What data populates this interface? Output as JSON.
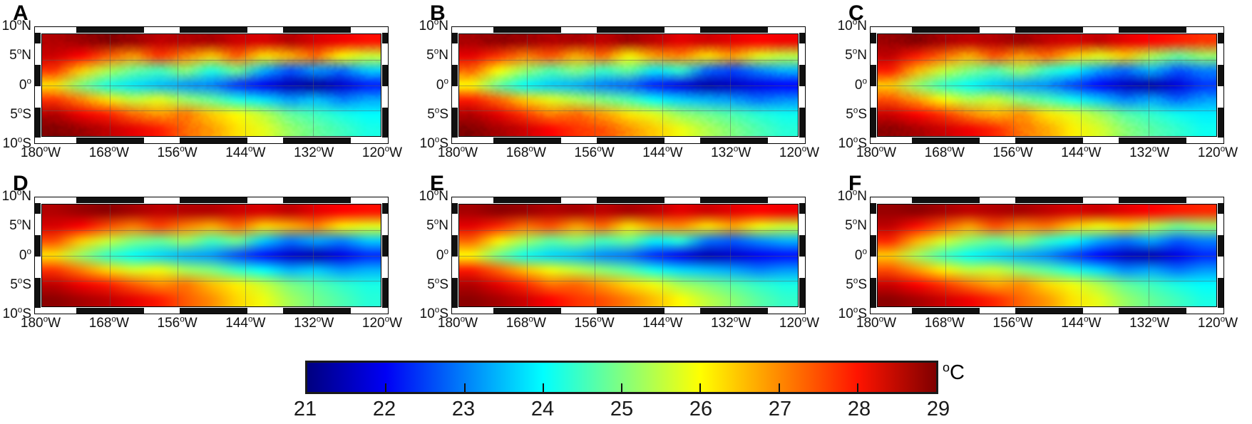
{
  "figure": {
    "axes": {
      "x_tick_labels": [
        "180°W",
        "168°W",
        "156°W",
        "144°W",
        "132°W",
        "120°W"
      ],
      "y_tick_labels": [
        "10°N",
        "5°N",
        "0°",
        "5°S",
        "10°S"
      ]
    },
    "panel_labels": [
      "A",
      "B",
      "C",
      "D",
      "E",
      "F"
    ],
    "colorbar": {
      "tick_labels": [
        "21",
        "22",
        "23",
        "24",
        "25",
        "26",
        "27",
        "28",
        "29"
      ],
      "unit": "°C"
    }
  },
  "chart_data": {
    "type": "heatmap",
    "description": "Six-panel sea surface temperature maps of the equatorial Pacific (10°N-10°S, 180°W-120°W). Top row (A,B,C): high-resolution grainy SST fields; bottom row (D,E,F): smoother SST fields. Warm water (27-29°C) north of ~5°N and southwest; equatorial cold tongue (21-23°C) intensifying eastward; tropical-instability-wave cusps along the fronts.",
    "colormap": "jet",
    "value_range_degC": [
      21,
      29
    ],
    "colorbar": {
      "label": "°C",
      "tick_values": [
        21,
        22,
        23,
        24,
        25,
        26,
        27,
        28,
        29
      ],
      "orientation": "horizontal"
    },
    "lat_axis_deg": [
      10,
      6.67,
      3.33,
      0,
      -3.33,
      -6.67,
      -10
    ],
    "lon_axis_deg": [
      -180,
      -175,
      -170,
      -165,
      -160,
      -155,
      -150,
      -145,
      -140,
      -135,
      -130,
      -125,
      -120
    ],
    "lon_tick_values": [
      -180,
      -168,
      -156,
      -144,
      -132,
      -120
    ],
    "lat_tick_values": [
      10,
      5,
      0,
      -5,
      -10
    ],
    "grid_on": true,
    "panels": [
      {
        "label": "A",
        "resolution": "high",
        "sst_grid_degC": [
          [
            28.6,
            28.8,
            29.0,
            28.8,
            28.5,
            28.6,
            28.7,
            28.4,
            28.3,
            28.6,
            28.3,
            28.1,
            27.9
          ],
          [
            28.4,
            28.0,
            27.3,
            26.8,
            27.6,
            27.0,
            26.4,
            27.3,
            26.2,
            26.6,
            27.2,
            26.0,
            25.6
          ],
          [
            27.6,
            26.4,
            25.4,
            24.8,
            24.5,
            25.1,
            24.2,
            24.9,
            23.4,
            22.6,
            23.2,
            22.8,
            23.6
          ],
          [
            26.2,
            25.0,
            24.2,
            23.8,
            23.5,
            23.2,
            23.0,
            22.4,
            21.9,
            21.4,
            21.2,
            21.6,
            22.2
          ],
          [
            27.6,
            27.0,
            26.2,
            25.5,
            25.8,
            25.2,
            24.8,
            24.2,
            23.8,
            23.2,
            23.5,
            23.0,
            23.3
          ],
          [
            28.6,
            28.1,
            27.8,
            27.2,
            26.8,
            27.1,
            26.4,
            26.0,
            25.5,
            24.8,
            24.5,
            24.2,
            24.0
          ],
          [
            29.0,
            28.8,
            28.5,
            28.2,
            27.8,
            27.2,
            26.8,
            26.2,
            25.8,
            25.2,
            24.8,
            24.5,
            24.2
          ]
        ]
      },
      {
        "label": "B",
        "resolution": "high",
        "sst_grid_degC": [
          [
            28.7,
            28.9,
            28.8,
            28.6,
            28.7,
            28.5,
            28.8,
            28.5,
            28.2,
            28.4,
            28.2,
            28.0,
            28.1
          ],
          [
            28.2,
            27.6,
            27.0,
            27.4,
            26.6,
            27.2,
            26.0,
            26.8,
            27.0,
            26.2,
            26.8,
            25.8,
            25.5
          ],
          [
            27.2,
            26.0,
            25.2,
            24.6,
            25.0,
            24.4,
            24.8,
            23.8,
            24.4,
            22.8,
            22.5,
            23.0,
            23.4
          ],
          [
            26.0,
            24.8,
            24.0,
            23.6,
            23.4,
            23.0,
            22.8,
            22.2,
            21.8,
            21.3,
            21.5,
            21.8,
            22.0
          ],
          [
            27.8,
            27.2,
            26.4,
            25.8,
            25.4,
            25.0,
            24.6,
            24.0,
            23.6,
            23.4,
            23.2,
            22.9,
            23.1
          ],
          [
            28.6,
            28.2,
            27.6,
            27.0,
            27.2,
            26.8,
            26.2,
            25.8,
            25.2,
            24.9,
            24.6,
            24.3,
            24.1
          ],
          [
            29.0,
            28.7,
            28.4,
            28.0,
            27.6,
            27.4,
            26.9,
            26.4,
            25.9,
            25.4,
            25.0,
            24.6,
            24.3
          ]
        ]
      },
      {
        "label": "C",
        "resolution": "high",
        "sst_grid_degC": [
          [
            28.8,
            29.0,
            28.7,
            28.5,
            28.6,
            28.8,
            28.5,
            28.3,
            28.5,
            28.2,
            28.0,
            27.8,
            27.6
          ],
          [
            28.5,
            27.8,
            27.2,
            26.6,
            27.4,
            26.8,
            27.2,
            26.4,
            25.8,
            26.4,
            25.4,
            24.8,
            25.2
          ],
          [
            27.8,
            26.6,
            25.6,
            25.0,
            24.6,
            25.2,
            24.4,
            24.0,
            23.2,
            22.8,
            23.4,
            22.6,
            23.0
          ],
          [
            26.4,
            25.2,
            24.4,
            24.0,
            23.6,
            23.3,
            23.1,
            22.5,
            22.0,
            21.5,
            21.3,
            21.7,
            22.4
          ],
          [
            27.4,
            26.8,
            26.0,
            25.4,
            25.6,
            25.0,
            24.6,
            24.1,
            23.6,
            23.0,
            23.3,
            22.8,
            23.2
          ],
          [
            28.4,
            28.0,
            27.6,
            27.0,
            26.6,
            26.9,
            26.2,
            25.8,
            25.3,
            24.7,
            24.4,
            24.1,
            23.9
          ],
          [
            28.9,
            28.7,
            28.4,
            28.1,
            27.7,
            27.1,
            26.7,
            26.1,
            25.7,
            25.1,
            24.7,
            24.4,
            24.1
          ]
        ]
      },
      {
        "label": "D",
        "resolution": "smooth",
        "sst_grid_degC": [
          [
            28.6,
            28.8,
            28.9,
            28.7,
            28.5,
            28.6,
            28.6,
            28.4,
            28.3,
            28.5,
            28.2,
            28.0,
            27.9
          ],
          [
            28.3,
            28.0,
            27.4,
            27.0,
            27.5,
            27.0,
            26.6,
            27.2,
            26.3,
            26.6,
            27.0,
            26.1,
            25.8
          ],
          [
            27.4,
            26.4,
            25.6,
            25.0,
            24.8,
            25.2,
            24.5,
            24.9,
            23.6,
            22.9,
            23.3,
            23.0,
            23.6
          ],
          [
            26.2,
            25.2,
            24.4,
            24.0,
            23.7,
            23.4,
            23.2,
            22.6,
            22.1,
            21.6,
            21.4,
            21.8,
            22.3
          ],
          [
            27.6,
            27.0,
            26.3,
            25.7,
            25.9,
            25.3,
            25.0,
            24.4,
            24.0,
            23.4,
            23.6,
            23.2,
            23.4
          ],
          [
            28.5,
            28.1,
            27.8,
            27.3,
            26.9,
            27.1,
            26.5,
            26.1,
            25.6,
            25.0,
            24.7,
            24.4,
            24.2
          ],
          [
            28.9,
            28.7,
            28.5,
            28.2,
            27.8,
            27.3,
            26.9,
            26.3,
            25.9,
            25.3,
            24.9,
            24.6,
            24.3
          ]
        ]
      },
      {
        "label": "E",
        "resolution": "smooth",
        "sst_grid_degC": [
          [
            28.7,
            28.9,
            28.8,
            28.6,
            28.7,
            28.5,
            28.7,
            28.5,
            28.2,
            28.4,
            28.2,
            28.0,
            28.1
          ],
          [
            28.2,
            27.7,
            27.1,
            27.4,
            26.7,
            27.2,
            26.2,
            26.8,
            26.9,
            26.2,
            26.7,
            25.9,
            25.6
          ],
          [
            27.2,
            26.1,
            25.3,
            24.7,
            25.0,
            24.5,
            24.8,
            23.9,
            24.3,
            22.9,
            22.7,
            23.1,
            23.4
          ],
          [
            26.0,
            24.9,
            24.1,
            23.7,
            23.5,
            23.1,
            22.9,
            22.3,
            21.9,
            21.4,
            21.6,
            21.9,
            22.1
          ],
          [
            27.8,
            27.2,
            26.5,
            25.9,
            25.5,
            25.1,
            24.7,
            24.1,
            23.7,
            23.5,
            23.3,
            23.0,
            23.2
          ],
          [
            28.6,
            28.2,
            27.7,
            27.1,
            27.2,
            26.8,
            26.3,
            25.9,
            25.3,
            25.0,
            24.7,
            24.4,
            24.2
          ],
          [
            28.9,
            28.7,
            28.4,
            28.0,
            27.6,
            27.4,
            27.0,
            26.5,
            26.0,
            25.5,
            25.1,
            24.7,
            24.4
          ]
        ]
      },
      {
        "label": "F",
        "resolution": "smooth",
        "sst_grid_degC": [
          [
            28.8,
            28.9,
            28.7,
            28.5,
            28.6,
            28.7,
            28.5,
            28.3,
            28.4,
            28.2,
            28.0,
            27.8,
            27.7
          ],
          [
            28.5,
            27.9,
            27.3,
            26.7,
            27.4,
            26.9,
            27.1,
            26.4,
            25.9,
            26.3,
            25.5,
            24.9,
            25.2
          ],
          [
            27.7,
            26.6,
            25.7,
            25.1,
            24.7,
            25.1,
            24.4,
            24.0,
            23.3,
            22.9,
            23.3,
            22.7,
            23.0
          ],
          [
            26.4,
            25.3,
            24.5,
            24.0,
            23.7,
            23.4,
            23.1,
            22.5,
            22.0,
            21.5,
            21.4,
            21.8,
            22.3
          ],
          [
            27.4,
            26.8,
            26.1,
            25.5,
            25.6,
            25.1,
            24.7,
            24.2,
            23.7,
            23.1,
            23.3,
            22.9,
            23.2
          ],
          [
            28.4,
            28.0,
            27.6,
            27.1,
            26.7,
            26.9,
            26.3,
            25.9,
            25.4,
            24.8,
            24.5,
            24.2,
            24.0
          ],
          [
            28.9,
            28.7,
            28.4,
            28.1,
            27.7,
            27.2,
            26.8,
            26.2,
            25.8,
            25.2,
            24.8,
            24.5,
            24.2
          ]
        ]
      }
    ]
  }
}
